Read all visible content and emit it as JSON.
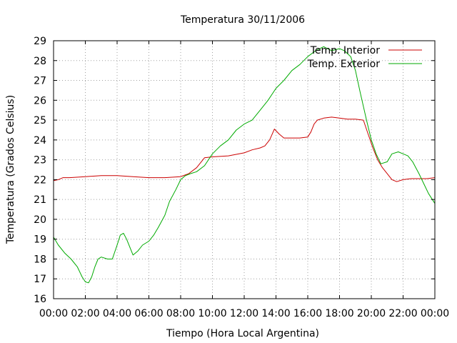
{
  "chart_data": {
    "type": "line",
    "title": "Temperatura 30/11/2006",
    "xlabel": "Tiempo (Hora Local Argentina)",
    "ylabel": "Temperatura (Grados Celsius)",
    "xlim": [
      0,
      24
    ],
    "ylim": [
      16,
      29
    ],
    "grid": true,
    "legend_position": "top-right",
    "x_tick_labels": [
      "00:00",
      "02:00",
      "04:00",
      "06:00",
      "08:00",
      "10:00",
      "12:00",
      "14:00",
      "16:00",
      "18:00",
      "20:00",
      "22:00",
      "00:00"
    ],
    "y_tick_labels": [
      "16",
      "17",
      "18",
      "19",
      "20",
      "21",
      "22",
      "23",
      "24",
      "25",
      "26",
      "27",
      "28",
      "29"
    ],
    "series": [
      {
        "name": "Temp. Interior",
        "color": "#cc0000",
        "x": [
          0,
          0.3,
          0.6,
          1,
          2,
          3,
          4,
          5,
          6,
          7,
          8,
          8.5,
          9,
          9.5,
          10,
          11,
          12,
          12.5,
          13,
          13.3,
          13.6,
          13.9,
          14.2,
          14.5,
          15,
          15.5,
          16,
          16.2,
          16.4,
          16.6,
          17,
          17.5,
          18,
          18.5,
          19,
          19.5,
          19.8,
          20.1,
          20.4,
          20.7,
          21,
          21.3,
          21.6,
          22,
          22.5,
          23,
          23.5,
          24
        ],
        "y": [
          21.95,
          22.0,
          22.1,
          22.1,
          22.15,
          22.2,
          22.2,
          22.15,
          22.1,
          22.1,
          22.15,
          22.3,
          22.6,
          23.1,
          23.15,
          23.2,
          23.35,
          23.5,
          23.6,
          23.7,
          24.0,
          24.55,
          24.3,
          24.1,
          24.1,
          24.1,
          24.15,
          24.4,
          24.8,
          25.0,
          25.1,
          25.15,
          25.1,
          25.05,
          25.05,
          25.0,
          24.3,
          23.6,
          23.0,
          22.6,
          22.3,
          22.0,
          21.9,
          22.0,
          22.05,
          22.05,
          22.05,
          22.1
        ]
      },
      {
        "name": "Temp. Exterior",
        "color": "#00aa00",
        "x": [
          0,
          0.3,
          0.7,
          1.1,
          1.5,
          1.8,
          2.0,
          2.2,
          2.4,
          2.6,
          2.8,
          3.0,
          3.4,
          3.7,
          4.0,
          4.2,
          4.4,
          4.6,
          4.8,
          5.0,
          5.3,
          5.6,
          6.0,
          6.3,
          6.6,
          7.0,
          7.3,
          7.7,
          8.0,
          8.3,
          8.6,
          9.0,
          9.5,
          10.0,
          10.5,
          11.0,
          11.5,
          12.0,
          12.5,
          13.0,
          13.5,
          14.0,
          14.5,
          15.0,
          15.5,
          16.0,
          16.5,
          17.0,
          17.5,
          18.0,
          18.3,
          18.7,
          19.0,
          19.3,
          19.7,
          20.0,
          20.3,
          20.6,
          21.0,
          21.3,
          21.7,
          22.0,
          22.3,
          22.6,
          23.0,
          23.3,
          23.6,
          24.0
        ],
        "y": [
          19.1,
          18.7,
          18.3,
          18.0,
          17.6,
          17.1,
          16.85,
          16.8,
          17.1,
          17.6,
          18.0,
          18.1,
          18.0,
          18.0,
          18.7,
          19.2,
          19.3,
          19.0,
          18.6,
          18.2,
          18.4,
          18.7,
          18.9,
          19.2,
          19.6,
          20.2,
          20.9,
          21.5,
          22.0,
          22.2,
          22.3,
          22.4,
          22.7,
          23.3,
          23.7,
          24.0,
          24.5,
          24.8,
          25.0,
          25.5,
          26.0,
          26.6,
          27.0,
          27.5,
          27.8,
          28.2,
          28.5,
          28.7,
          28.5,
          28.6,
          28.5,
          28.2,
          27.5,
          26.4,
          25.0,
          24.0,
          23.3,
          22.8,
          22.9,
          23.3,
          23.4,
          23.3,
          23.2,
          22.9,
          22.3,
          21.8,
          21.3,
          20.8
        ]
      }
    ]
  }
}
